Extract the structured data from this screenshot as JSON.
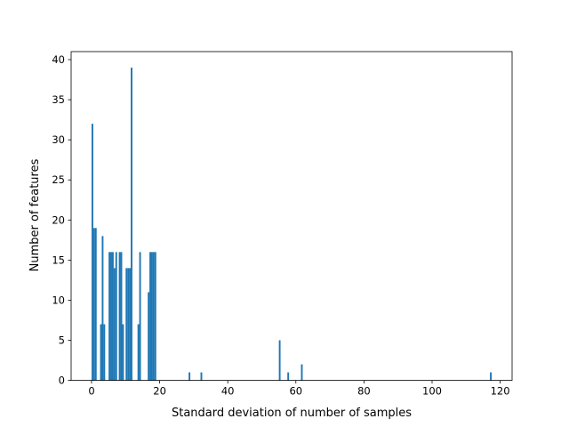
{
  "chart_data": {
    "type": "bar",
    "title": "",
    "xlabel": "Standard deviation of number of samples",
    "ylabel": "Number of features",
    "xlim": [
      -6,
      123.5
    ],
    "ylim": [
      0,
      41
    ],
    "xticks": [
      0,
      20,
      40,
      60,
      80,
      100,
      120
    ],
    "yticks": [
      0,
      5,
      10,
      15,
      20,
      25,
      30,
      35,
      40
    ],
    "grid": false,
    "legend": "none",
    "bar_color": "#1f77b4",
    "bars": [
      {
        "x": 0.25,
        "value": 32
      },
      {
        "x": 0.75,
        "value": 19
      },
      {
        "x": 1.25,
        "value": 19
      },
      {
        "x": 2.75,
        "value": 7
      },
      {
        "x": 3.25,
        "value": 18
      },
      {
        "x": 3.75,
        "value": 7
      },
      {
        "x": 5.25,
        "value": 16
      },
      {
        "x": 5.75,
        "value": 16
      },
      {
        "x": 6.25,
        "value": 16
      },
      {
        "x": 6.75,
        "value": 14
      },
      {
        "x": 7.25,
        "value": 16
      },
      {
        "x": 8.25,
        "value": 16
      },
      {
        "x": 8.75,
        "value": 16
      },
      {
        "x": 9.25,
        "value": 7
      },
      {
        "x": 10.25,
        "value": 14
      },
      {
        "x": 10.75,
        "value": 14
      },
      {
        "x": 11.25,
        "value": 14
      },
      {
        "x": 11.75,
        "value": 39
      },
      {
        "x": 13.75,
        "value": 7
      },
      {
        "x": 14.25,
        "value": 16
      },
      {
        "x": 16.75,
        "value": 11
      },
      {
        "x": 17.25,
        "value": 16
      },
      {
        "x": 17.75,
        "value": 16
      },
      {
        "x": 18.25,
        "value": 16
      },
      {
        "x": 18.75,
        "value": 16
      },
      {
        "x": 28.75,
        "value": 1
      },
      {
        "x": 32.25,
        "value": 1
      },
      {
        "x": 55.25,
        "value": 5
      },
      {
        "x": 57.75,
        "value": 1
      },
      {
        "x": 61.75,
        "value": 2
      },
      {
        "x": 117.25,
        "value": 1
      }
    ]
  }
}
